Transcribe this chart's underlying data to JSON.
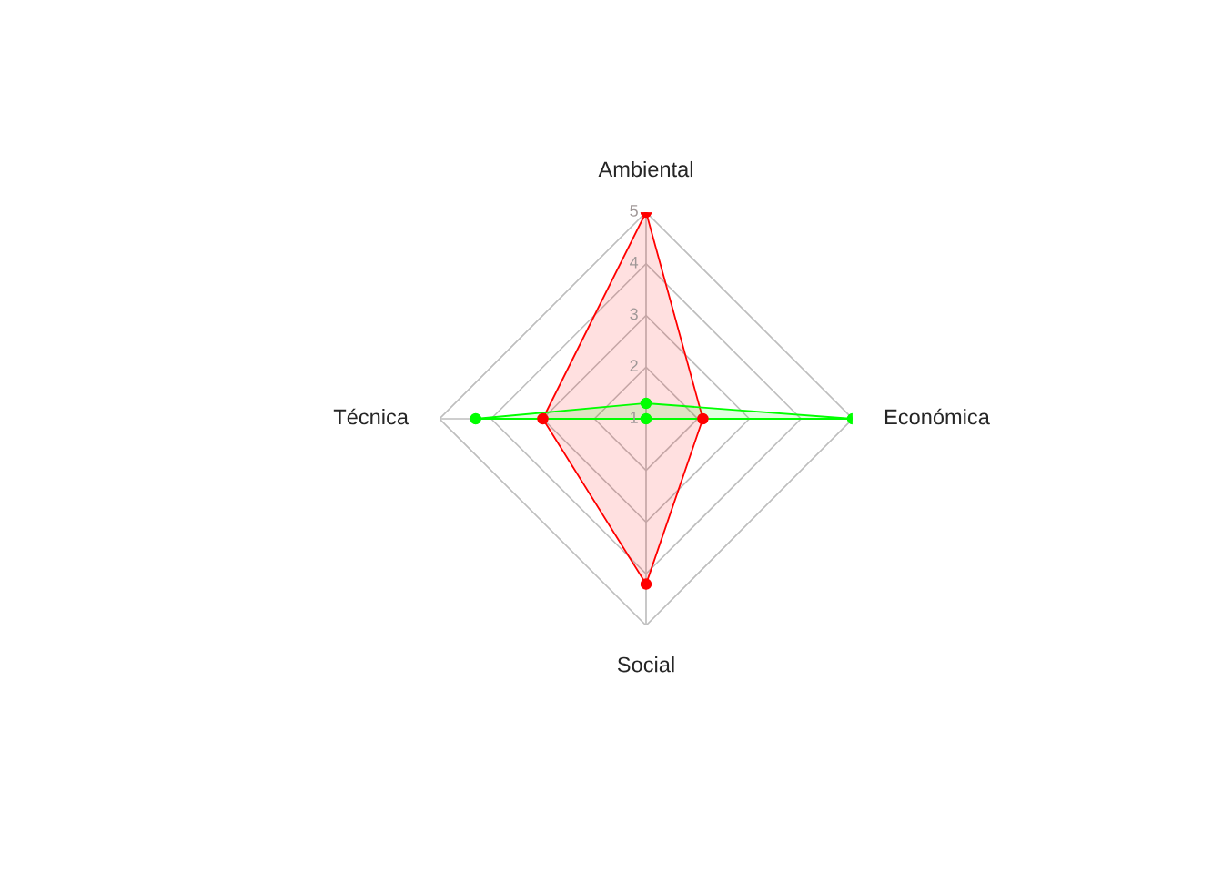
{
  "chart_data": {
    "type": "radar",
    "categories": [
      "Ambiental",
      "Económica",
      "Social",
      "Técnica"
    ],
    "series": [
      {
        "color": "#ff0000",
        "values": [
          5,
          2.1,
          4.2,
          3
        ]
      },
      {
        "color": "#00ff00",
        "values": [
          1.3,
          5,
          1,
          4.3
        ]
      }
    ],
    "ylim": [
      1,
      5
    ],
    "yticks": [
      1,
      2,
      3,
      4,
      5
    ],
    "marker": "circle",
    "line_style": "solid",
    "grid": true
  }
}
